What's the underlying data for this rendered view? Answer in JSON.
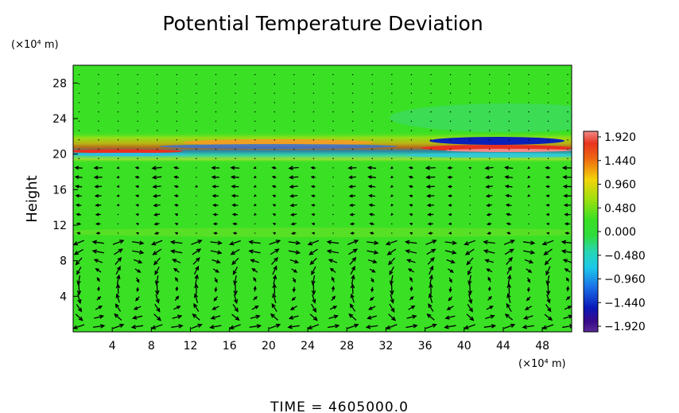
{
  "chart_data": {
    "type": "heatmap",
    "title": "Potential Temperature Deviation",
    "ylabel": "Height",
    "x_unit": "(×10⁴ m)",
    "y_unit": "(×10⁴ m)",
    "x_ticks": [
      4,
      8,
      12,
      16,
      20,
      24,
      28,
      32,
      36,
      40,
      44,
      48
    ],
    "y_ticks": [
      4,
      8,
      12,
      16,
      20,
      24,
      28
    ],
    "xlim": [
      0,
      51
    ],
    "ylim": [
      0,
      30
    ],
    "colorbar": {
      "ticks": [
        "1.920",
        "1.440",
        "0.960",
        "0.480",
        "0.000",
        "−0.480",
        "−0.960",
        "−1.440",
        "−1.920"
      ],
      "range": [
        -1.92,
        1.92
      ]
    },
    "background_value": 0.0,
    "overlay": "velocity vector arrows",
    "footer": "TIME  =  4605000.0"
  }
}
